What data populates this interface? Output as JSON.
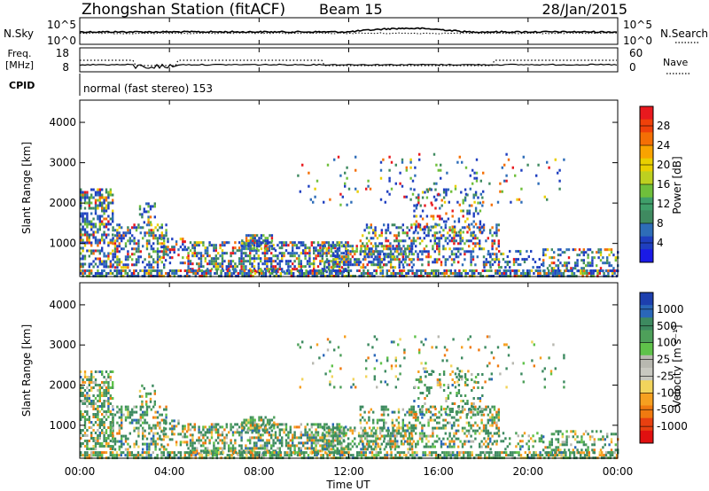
{
  "header": {
    "station": "Zhongshan Station (fitACF)",
    "beam": "Beam 15",
    "date": "28/Jan/2015"
  },
  "mode": {
    "text": "normal (fast stereo) 153"
  },
  "panels": {
    "nsky": {
      "label": "N.Sky",
      "ticks_left": [
        "10^5",
        "10^0"
      ],
      "ticks_right": [
        "10^5",
        "10^0"
      ],
      "right_label": "N.Search"
    },
    "freq": {
      "label_line1": "Freq.",
      "label_line2": "[MHz]",
      "ticks_left": [
        "18",
        "8"
      ],
      "ticks_right": [
        "60",
        "0"
      ],
      "right_label": "Nave",
      "cpid_label": "CPID"
    }
  },
  "chart_data": [
    {
      "type": "heatmap",
      "name": "power",
      "ylabel": "Slant Range [km]",
      "y_ticks": [
        "4000",
        "3000",
        "2000",
        "1000"
      ],
      "y_range": [
        180,
        4550
      ],
      "colorbar": {
        "label": "Power [dB]",
        "ticks": [
          "28",
          "24",
          "20",
          "16",
          "12",
          "8",
          "4"
        ],
        "colors": [
          "#e8191e",
          "#f0410a",
          "#f46f05",
          "#f9a300",
          "#e9cf00",
          "#bdd020",
          "#6fbf3b",
          "#3f9f6a",
          "#3f8a60",
          "#2e6db8",
          "#1f3fc0",
          "#1a1ae6"
        ]
      }
    },
    {
      "type": "heatmap",
      "name": "velocity",
      "ylabel": "Slant Range [km]",
      "y_ticks": [
        "4000",
        "3000",
        "2000",
        "1000"
      ],
      "y_range": [
        180,
        4550
      ],
      "colorbar": {
        "label": "Velocity [m s⁻¹]",
        "ticks": [
          "1000",
          "500",
          "100",
          "25",
          "-25",
          "-100",
          "-500",
          "-1000"
        ],
        "colors": [
          "#1d3fae",
          "#2a67b8",
          "#3d8a60",
          "#4ea05a",
          "#5fc24a",
          "#b8b8b0",
          "#c8c8c0",
          "#f2d45c",
          "#f6a020",
          "#f07a10",
          "#e84010",
          "#e01010"
        ]
      }
    }
  ],
  "xaxis": {
    "label": "Time UT",
    "ticks": [
      "00:00",
      "04:00",
      "08:00",
      "12:00",
      "16:00",
      "20:00",
      "00:00"
    ]
  }
}
